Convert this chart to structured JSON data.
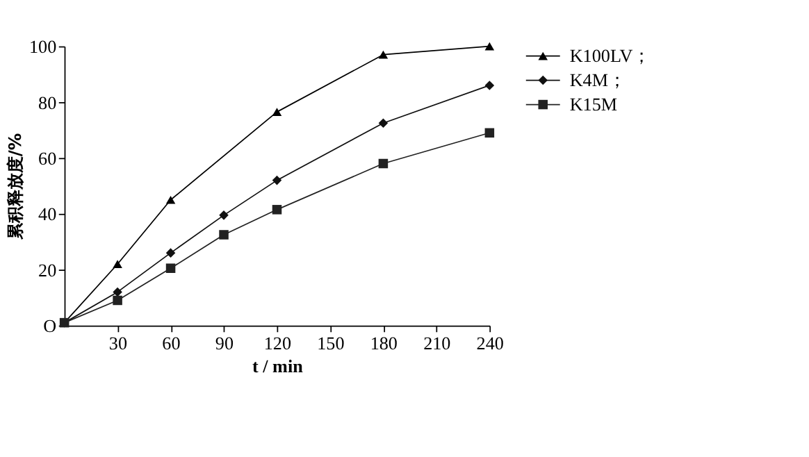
{
  "chart_data": {
    "type": "line",
    "xlabel": "t / min",
    "ylabel": "累积释放度/%",
    "xlim": [
      0,
      240
    ],
    "xticks": [
      30,
      60,
      90,
      120,
      150,
      180,
      210,
      240
    ],
    "ylim": [
      0,
      100
    ],
    "yticks": [
      {
        "value": 0,
        "label": "O"
      },
      20,
      40,
      60,
      80,
      100
    ],
    "grid": false,
    "legend": "top right",
    "line_style": "solid",
    "series": [
      {
        "name": "K100LV；",
        "color": "#000000",
        "marker": "triangle",
        "x": [
          0,
          30,
          60,
          120,
          180,
          240
        ],
        "values": [
          1,
          22,
          45,
          76.5,
          97,
          100
        ]
      },
      {
        "name": "K4M；",
        "color": "#111111",
        "marker": "diamond",
        "x": [
          0,
          30,
          60,
          90,
          120,
          180,
          240
        ],
        "values": [
          1,
          12,
          26,
          39.5,
          52,
          72.5,
          86
        ]
      },
      {
        "name": "K15M",
        "color": "#222222",
        "marker": "square",
        "x": [
          0,
          30,
          60,
          90,
          120,
          180,
          240
        ],
        "values": [
          1,
          9,
          20.5,
          32.5,
          41.5,
          58,
          69
        ]
      }
    ]
  }
}
